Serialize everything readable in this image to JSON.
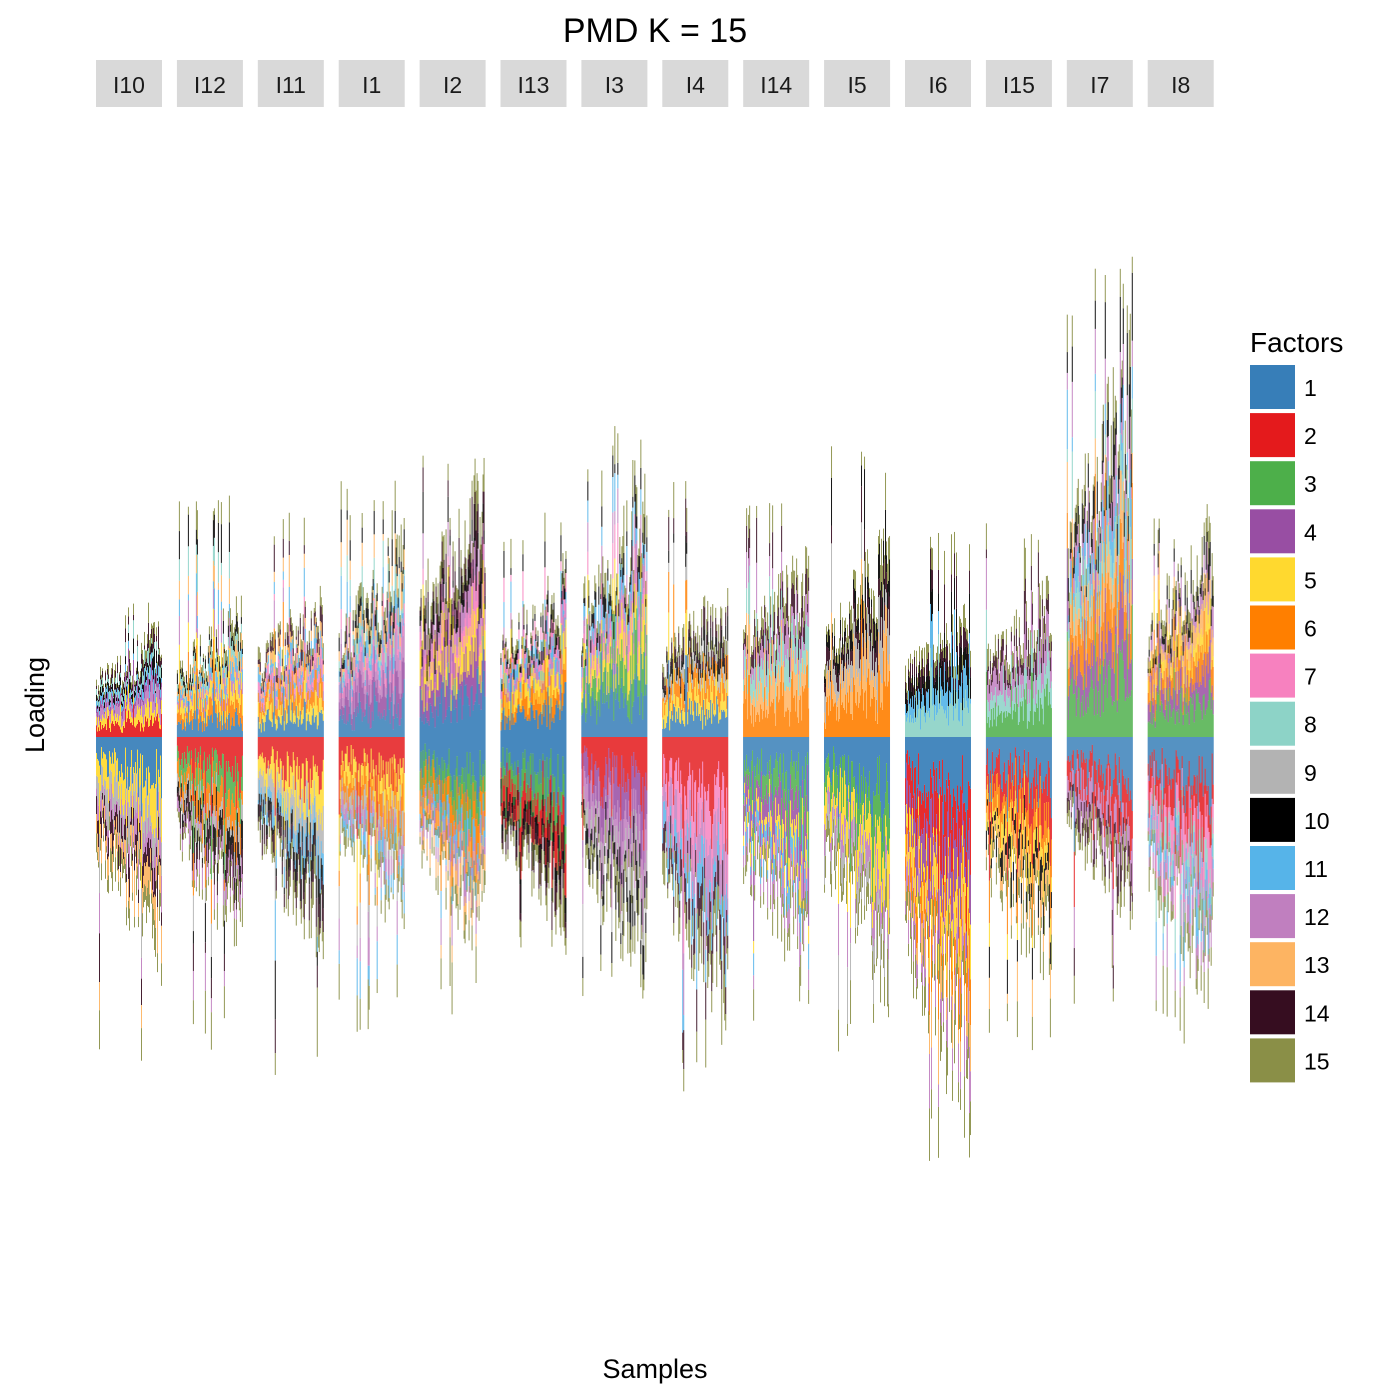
{
  "chart_data": {
    "type": "bar",
    "title": "PMD K = 15",
    "xlabel": "Samples",
    "ylabel": "Loading",
    "legend": {
      "title": "Factors",
      "placement": "right",
      "entries": [
        "1",
        "2",
        "3",
        "4",
        "5",
        "6",
        "7",
        "8",
        "9",
        "10",
        "11",
        "12",
        "13",
        "14",
        "15"
      ],
      "colors": [
        "#377EB8",
        "#E41A1C",
        "#4DAF4A",
        "#984EA3",
        "#FFD92F",
        "#FF7F00",
        "#F781BF",
        "#8DD3C7",
        "#B3B3B3",
        "#000000",
        "#56B4E9",
        "#C07FBF",
        "#FDB462",
        "#360D20",
        "#8A8F47"
      ]
    },
    "grid": false,
    "y_axis_ticks_shown": false,
    "ylim": [
      -1.85,
      2.1
    ],
    "facets": [
      {
        "label": "I10",
        "pos": [
          2,
          5,
          12,
          4,
          11,
          10,
          8,
          14,
          15
        ],
        "neg": [
          1,
          5,
          9,
          12,
          14,
          13,
          15
        ],
        "pos_max": 0.33,
        "pos_peak": 0.47,
        "neg_max": 0.65,
        "neg_peak": 1.17
      },
      {
        "label": "I12",
        "pos": [
          1,
          6,
          5,
          12,
          11,
          13,
          8,
          10,
          15
        ],
        "neg": [
          2,
          3,
          6,
          9,
          10,
          14,
          12,
          15
        ],
        "pos_max": 0.4,
        "pos_peak": 0.85,
        "neg_max": 0.6,
        "neg_peak": 1.05
      },
      {
        "label": "I11",
        "pos": [
          1,
          5,
          6,
          12,
          7,
          11,
          13,
          14,
          15
        ],
        "neg": [
          2,
          5,
          9,
          11,
          10,
          14,
          15
        ],
        "pos_max": 0.45,
        "pos_peak": 0.8,
        "neg_max": 0.62,
        "neg_peak": 1.17
      },
      {
        "label": "I1",
        "pos": [
          1,
          4,
          12,
          7,
          11,
          8,
          13,
          10,
          15
        ],
        "neg": [
          2,
          5,
          6,
          9,
          12,
          11,
          15
        ],
        "pos_max": 0.6,
        "pos_peak": 0.9,
        "neg_max": 0.55,
        "neg_peak": 1.0
      },
      {
        "label": "I2",
        "pos": [
          1,
          4,
          5,
          7,
          12,
          10,
          14,
          15
        ],
        "neg": [
          1,
          3,
          6,
          11,
          12,
          13,
          15
        ],
        "pos_max": 0.8,
        "pos_peak": 1.1,
        "neg_max": 0.62,
        "neg_peak": 0.95
      },
      {
        "label": "I13",
        "pos": [
          1,
          6,
          5,
          12,
          11,
          7,
          10,
          15
        ],
        "neg": [
          1,
          3,
          2,
          10,
          14,
          15
        ],
        "pos_max": 0.5,
        "pos_peak": 0.78,
        "neg_max": 0.55,
        "neg_peak": 0.73
      },
      {
        "label": "I3",
        "pos": [
          1,
          3,
          5,
          7,
          12,
          11,
          10,
          15
        ],
        "neg": [
          2,
          4,
          12,
          9,
          10,
          15
        ],
        "pos_max": 0.75,
        "pos_peak": 1.08,
        "neg_max": 0.7,
        "neg_peak": 0.9
      },
      {
        "label": "I4",
        "pos": [
          1,
          5,
          6,
          9,
          10,
          14,
          15
        ],
        "neg": [
          2,
          7,
          12,
          11,
          14,
          15
        ],
        "pos_max": 0.45,
        "pos_peak": 0.9,
        "neg_max": 0.83,
        "neg_peak": 1.2
      },
      {
        "label": "I14",
        "pos": [
          6,
          13,
          8,
          12,
          14,
          15
        ],
        "neg": [
          1,
          3,
          4,
          5,
          11,
          12,
          15
        ],
        "pos_max": 0.55,
        "pos_peak": 0.85,
        "neg_max": 0.7,
        "neg_peak": 0.95
      },
      {
        "label": "I5",
        "pos": [
          6,
          13,
          9,
          14,
          10,
          15
        ],
        "neg": [
          1,
          3,
          5,
          12,
          9,
          15
        ],
        "pos_max": 0.6,
        "pos_peak": 1.05,
        "neg_max": 0.73,
        "neg_peak": 1.1
      },
      {
        "label": "I6",
        "pos": [
          8,
          11,
          10,
          14,
          15
        ],
        "neg": [
          1,
          2,
          4,
          5,
          6,
          13,
          12,
          15
        ],
        "pos_max": 0.38,
        "pos_peak": 0.75,
        "neg_max": 1.12,
        "neg_peak": 1.45
      },
      {
        "label": "I15",
        "pos": [
          3,
          8,
          12,
          14,
          15
        ],
        "neg": [
          1,
          2,
          6,
          5,
          10,
          13,
          15
        ],
        "pos_max": 0.45,
        "pos_peak": 0.75,
        "neg_max": 0.72,
        "neg_peak": 1.05
      },
      {
        "label": "I7",
        "pos": [
          3,
          4,
          6,
          13,
          8,
          11,
          12,
          10,
          15
        ],
        "neg": [
          1,
          2,
          12,
          14,
          15
        ],
        "pos_max": 1.15,
        "pos_peak": 1.7,
        "neg_max": 0.52,
        "neg_peak": 0.9
      },
      {
        "label": "I8",
        "pos": [
          3,
          4,
          6,
          5,
          13,
          12,
          10,
          15
        ],
        "neg": [
          1,
          2,
          7,
          8,
          11,
          12,
          15
        ],
        "pos_max": 0.65,
        "pos_peak": 0.8,
        "neg_max": 0.75,
        "neg_peak": 1.05
      }
    ]
  }
}
